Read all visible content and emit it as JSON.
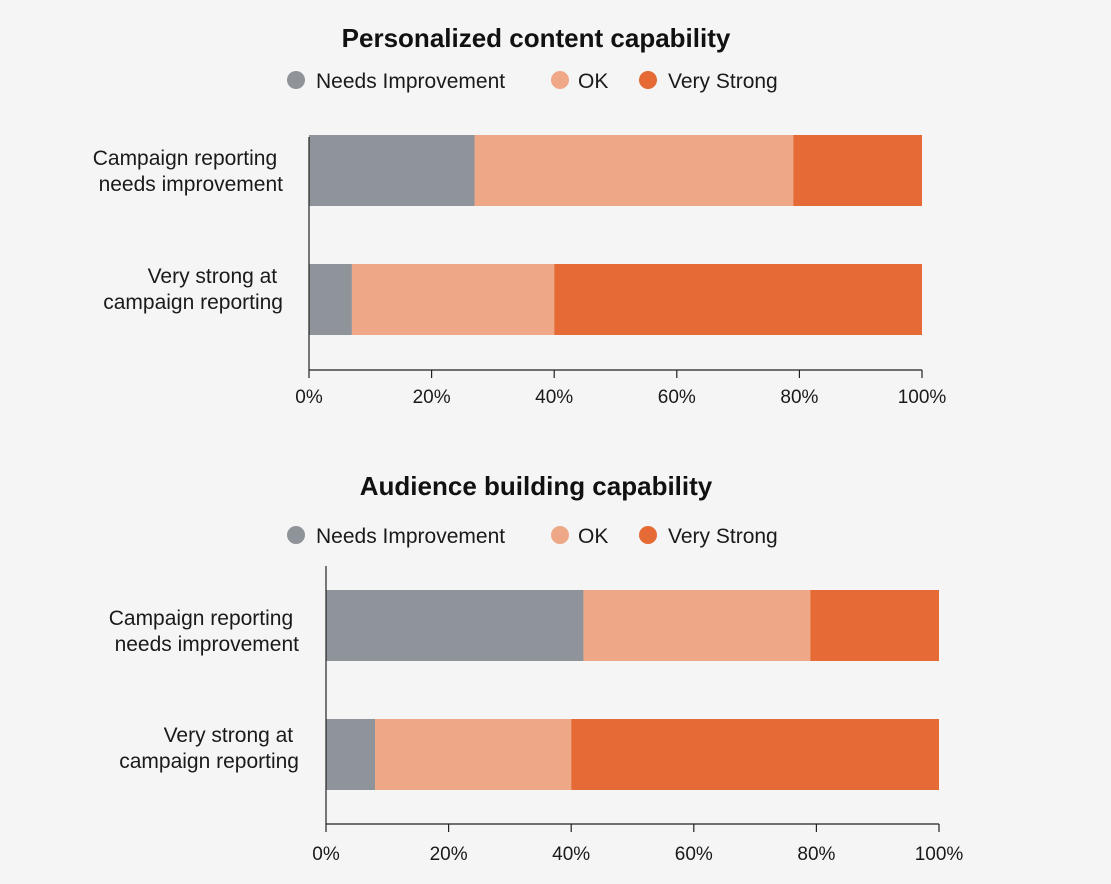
{
  "colors": {
    "needs_improvement": "#8f949a",
    "ok": "#efa887",
    "very_strong": "#e56a35",
    "background": "#f4f5f4"
  },
  "chart_data": [
    {
      "type": "bar",
      "orientation": "horizontal",
      "stacked": true,
      "title": "Personalized content capability",
      "legend": [
        "Needs Improvement",
        "OK",
        "Very Strong"
      ],
      "legend_position": "top-center",
      "categories": [
        "Campaign reporting needs improvement",
        "Very strong at campaign reporting"
      ],
      "category_lines": [
        [
          "Campaign reporting",
          "needs improvement"
        ],
        [
          "Very strong at",
          "campaign reporting"
        ]
      ],
      "series": [
        {
          "name": "Needs Improvement",
          "values": [
            27,
            7
          ]
        },
        {
          "name": "OK",
          "values": [
            52,
            33
          ]
        },
        {
          "name": "Very Strong",
          "values": [
            21,
            60
          ]
        }
      ],
      "xlim": [
        0,
        100
      ],
      "x_ticks": [
        "0%",
        "20%",
        "40%",
        "60%",
        "80%",
        "100%"
      ],
      "grid": false
    },
    {
      "type": "bar",
      "orientation": "horizontal",
      "stacked": true,
      "title": "Audience building capability",
      "legend": [
        "Needs Improvement",
        "OK",
        "Very Strong"
      ],
      "legend_position": "top-center",
      "categories": [
        "Campaign reporting needs improvement",
        "Very strong at campaign reporting"
      ],
      "category_lines": [
        [
          "Campaign reporting",
          "needs improvement"
        ],
        [
          "Very strong at",
          "campaign reporting"
        ]
      ],
      "series": [
        {
          "name": "Needs Improvement",
          "values": [
            42,
            8
          ]
        },
        {
          "name": "OK",
          "values": [
            37,
            32
          ]
        },
        {
          "name": "Very Strong",
          "values": [
            21,
            60
          ]
        }
      ],
      "xlim": [
        0,
        100
      ],
      "x_ticks": [
        "0%",
        "20%",
        "40%",
        "60%",
        "80%",
        "100%"
      ],
      "grid": false
    }
  ]
}
